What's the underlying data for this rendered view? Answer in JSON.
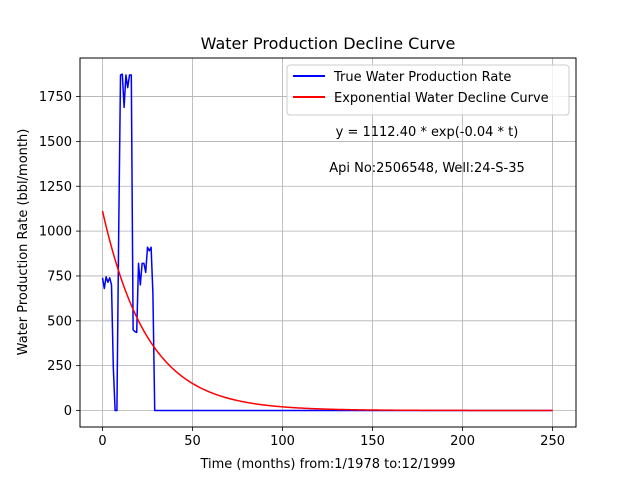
{
  "chart_data": {
    "type": "line",
    "title": "Water Production Decline Curve",
    "xlabel": "Time (months) from:1/1978 to:12/1999",
    "ylabel": "Water Production Rate (bbl/month)",
    "xlim": [
      -12.5,
      263
    ],
    "ylim": [
      -92,
      1965
    ],
    "xticks": [
      0,
      50,
      100,
      150,
      200,
      250
    ],
    "yticks": [
      0,
      250,
      500,
      750,
      1000,
      1250,
      1500,
      1750
    ],
    "grid": true,
    "legend_position": "top-right",
    "annotations": [
      "y = 1112.40 * exp(-0.04 * t)",
      "Api No:2506548, Well:24-S-35"
    ],
    "series": [
      {
        "name": "True Water Production Rate",
        "color": "#0000ff",
        "x": [
          0,
          1,
          2,
          3,
          4,
          5,
          6,
          7,
          8,
          9,
          10,
          11,
          12,
          13,
          14,
          15,
          16,
          17,
          18,
          19,
          20,
          21,
          22,
          23,
          24,
          25,
          26,
          27,
          28,
          29,
          30,
          50,
          100,
          150,
          200,
          250
        ],
        "y": [
          740,
          680,
          745,
          715,
          740,
          700,
          240,
          0,
          0,
          1000,
          1870,
          1875,
          1690,
          1870,
          1800,
          1870,
          1870,
          450,
          440,
          435,
          820,
          700,
          820,
          820,
          770,
          910,
          890,
          910,
          650,
          0,
          0,
          0,
          0,
          0,
          0,
          0
        ]
      },
      {
        "name": "Exponential Water Decline Curve",
        "color": "#ff0000",
        "formula": {
          "a": 1112.4,
          "b": 0.04,
          "t_start": 0,
          "t_end": 250
        }
      }
    ]
  }
}
